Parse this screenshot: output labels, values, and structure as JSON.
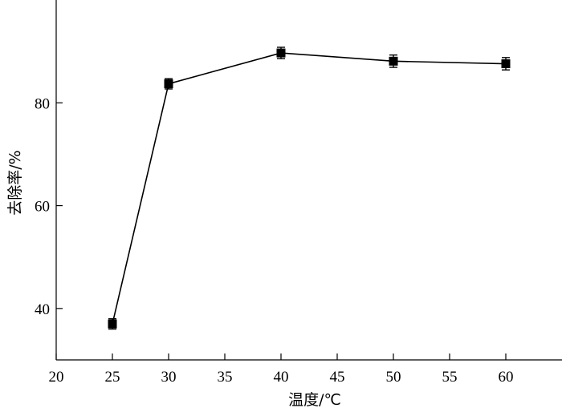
{
  "chart_data": {
    "type": "line",
    "xlabel": "温度/℃",
    "ylabel": "去除率/%",
    "xlim": [
      20,
      65
    ],
    "ylim": [
      30,
      100
    ],
    "xticks": [
      20,
      25,
      30,
      35,
      40,
      45,
      50,
      55,
      60
    ],
    "yticks": [
      40,
      60,
      80
    ],
    "grid": false,
    "series": [
      {
        "x": [
          25,
          30,
          40,
          50,
          60
        ],
        "y": [
          37.0,
          83.7,
          89.7,
          88.1,
          87.6
        ],
        "error": [
          1.0,
          1.0,
          1.1,
          1.2,
          1.2
        ],
        "marker": "square"
      }
    ]
  }
}
